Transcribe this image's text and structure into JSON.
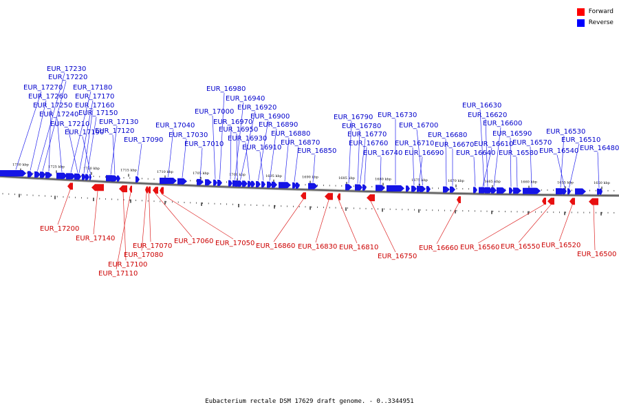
{
  "caption": "Eubacterium rectale DSM 17629 draft genome. - 0..3344951",
  "legend": [
    {
      "label": "Forward",
      "color": "#ff0000"
    },
    {
      "label": "Reverse",
      "color": "#0000ff"
    }
  ],
  "ticks": [
    "1730 kbp",
    "1725 kbp",
    "1720 kbp",
    "1715 kbp",
    "1710 kbp",
    "1705 kbp",
    "1700 kbp",
    "1695 kbp",
    "1690 kbp",
    "1685 kbp",
    "1680 kbp",
    "1675 kbp",
    "1670 kbp",
    "1665 kbp",
    "1660 kbp",
    "1655 kbp",
    "1650 kbp"
  ],
  "reverse_genes": [
    "EUR_17230",
    "EUR_17220",
    "EUR_17270",
    "EUR_17180",
    "EUR_17260",
    "EUR_17170",
    "EUR_17250",
    "EUR_17160",
    "EUR_17240",
    "EUR_17150",
    "EUR_17210",
    "EUR_17130",
    "EUR_17190",
    "EUR_17120",
    "EUR_17090",
    "EUR_16980",
    "EUR_16940",
    "EUR_17000",
    "EUR_16920",
    "EUR_16970",
    "EUR_16900",
    "EUR_17040",
    "EUR_16950",
    "EUR_16890",
    "EUR_17030",
    "EUR_16930",
    "EUR_16880",
    "EUR_17010",
    "EUR_16910",
    "EUR_16870",
    "EUR_16850",
    "EUR_16790",
    "EUR_16730",
    "EUR_16780",
    "EUR_16700",
    "EUR_16770",
    "EUR_16760",
    "EUR_16710",
    "EUR_16740",
    "EUR_16690",
    "EUR_16630",
    "EUR_16620",
    "EUR_16600",
    "EUR_16680",
    "EUR_16670",
    "EUR_16590",
    "EUR_16530",
    "EUR_16610",
    "EUR_16570",
    "EUR_16510",
    "EUR_16640",
    "EUR_16580",
    "EUR_16540",
    "EUR_16480"
  ],
  "forward_genes": [
    "EUR_17200",
    "EUR_17140",
    "EUR_17070",
    "EUR_17060",
    "EUR_17050",
    "EUR_17080",
    "EUR_17100",
    "EUR_17110",
    "EUR_16860",
    "EUR_16830",
    "EUR_16810",
    "EUR_16750",
    "EUR_16660",
    "EUR_16560",
    "EUR_16550",
    "EUR_16520",
    "EUR_16500"
  ]
}
